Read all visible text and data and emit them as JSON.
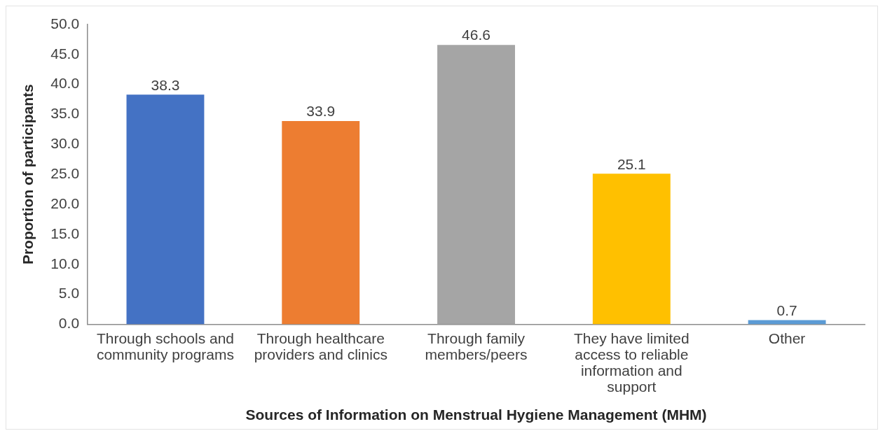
{
  "chart_data": {
    "type": "bar",
    "xlabel": "Sources of Information on Menstrual Hygiene Management (MHM)",
    "ylabel": "Proportion of participants",
    "categories": [
      "Through schools and community programs",
      "Through healthcare providers and clinics",
      "Through family members/peers",
      "They have limited access to reliable information and support",
      "Other"
    ],
    "values": [
      38.3,
      33.9,
      46.6,
      25.1,
      0.7
    ],
    "colors": [
      "#4472c4",
      "#ed7d31",
      "#a5a5a5",
      "#ffc000",
      "#5b9bd5"
    ],
    "ylim": [
      0,
      50
    ],
    "yticks": [
      {
        "value": 0,
        "label": "0.0"
      },
      {
        "value": 5,
        "label": "5.0"
      },
      {
        "value": 10,
        "label": "10.0"
      },
      {
        "value": 15,
        "label": "15.0"
      },
      {
        "value": 20,
        "label": "20.0"
      },
      {
        "value": 25,
        "label": "25.0"
      },
      {
        "value": 30,
        "label": "30.0"
      },
      {
        "value": 35,
        "label": "35.0"
      },
      {
        "value": 40,
        "label": "40.0"
      },
      {
        "value": 45,
        "label": "45.0"
      },
      {
        "value": 50,
        "label": "50.0"
      }
    ],
    "data_labels": true
  }
}
